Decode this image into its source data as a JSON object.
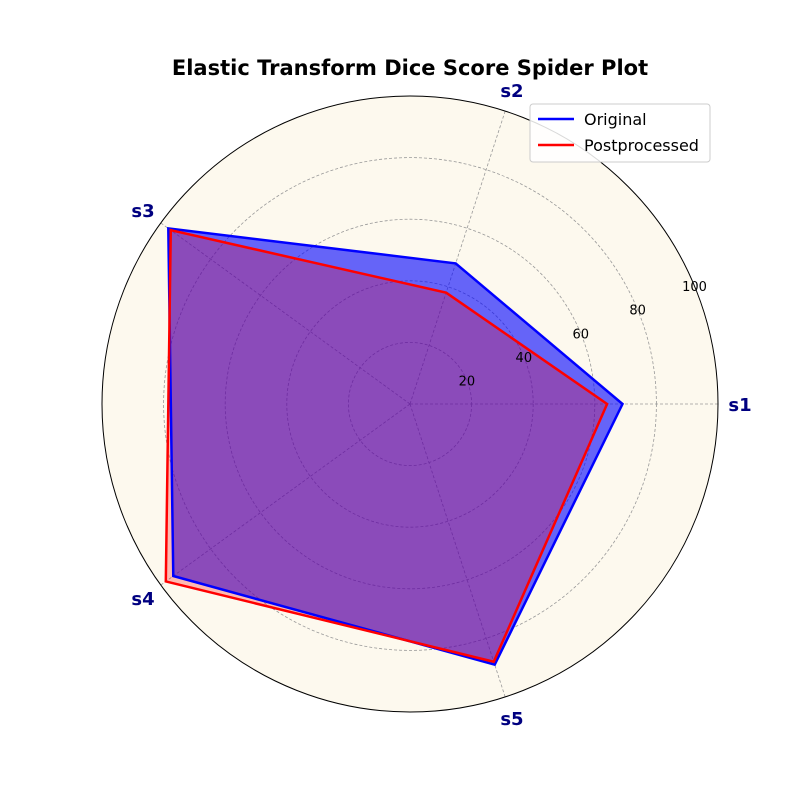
{
  "chart_data": {
    "type": "radar",
    "title": "Elastic Transform Dice Score Spider Plot",
    "categories": [
      "s1",
      "s2",
      "s3",
      "s4",
      "s5"
    ],
    "series": [
      {
        "name": "Original",
        "values": [
          69,
          48,
          97,
          95,
          89
        ],
        "color": "#0000ff"
      },
      {
        "name": "Postprocessed",
        "values": [
          64,
          38,
          96,
          98,
          88
        ],
        "color": "#ff0000"
      }
    ],
    "rlim": [
      0,
      100
    ],
    "rticks": [
      20,
      40,
      60,
      80,
      100
    ],
    "grid": true,
    "legend_position": "top-right",
    "colors": {
      "plot_background": "#fdf9ee",
      "fill_original": "#0000ff",
      "fill_postprocessed": "#ff0000"
    }
  }
}
